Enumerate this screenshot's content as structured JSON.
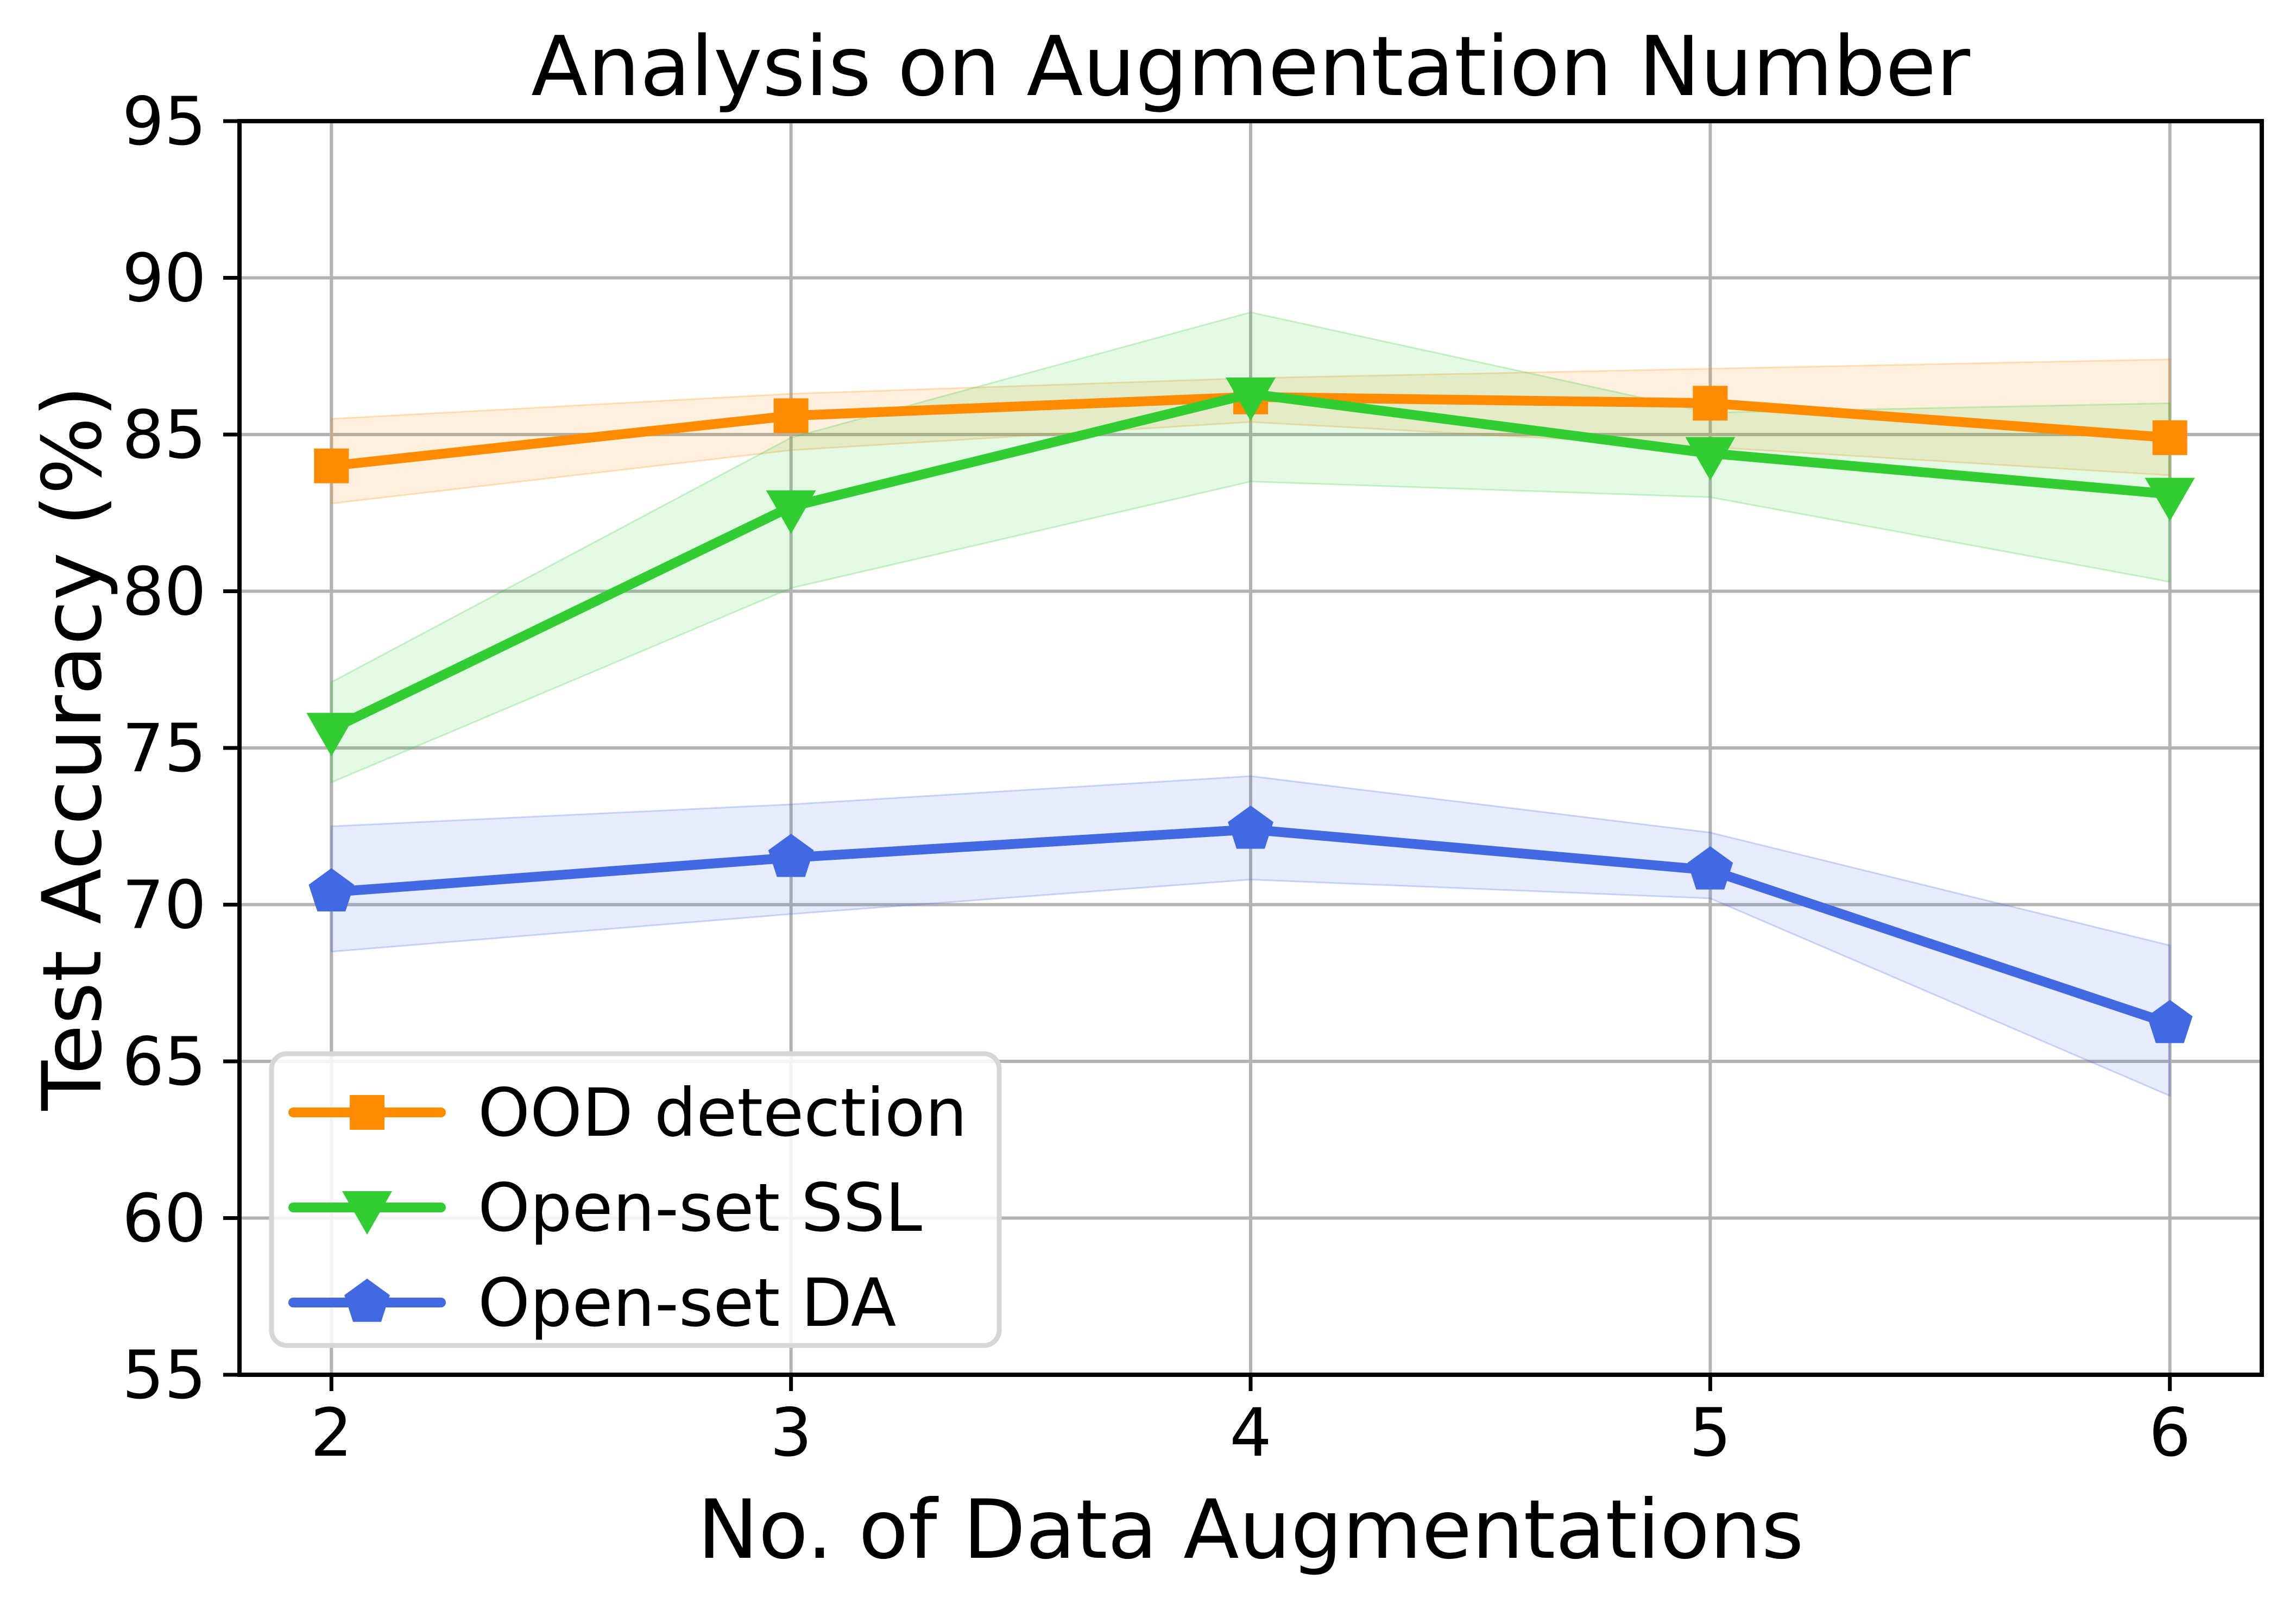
{
  "chart_data": {
    "type": "line",
    "title": "Analysis on Augmentation Number",
    "xlabel": "No. of Data Augmentations",
    "ylabel": "Test Accuracy (%)",
    "x": [
      2,
      3,
      4,
      5,
      6
    ],
    "xticks": [
      2,
      3,
      4,
      5,
      6
    ],
    "yticks": [
      55,
      60,
      65,
      70,
      75,
      80,
      85,
      90,
      95
    ],
    "xlim": [
      1.8,
      6.2
    ],
    "ylim": [
      55,
      95
    ],
    "grid": true,
    "grid_color": "#b3b3b3",
    "spine_color": "#000000",
    "background_color": "#ffffff",
    "band_alpha": 0.13,
    "legend_position": "lower-left",
    "series": [
      {
        "name": "OOD detection",
        "color": "#FF8C00",
        "marker": "square",
        "values": [
          84.0,
          85.6,
          86.2,
          86.0,
          84.9
        ],
        "band_low": [
          82.8,
          84.5,
          85.4,
          84.6,
          83.7
        ],
        "band_high": [
          85.5,
          86.3,
          86.8,
          87.1,
          87.4
        ]
      },
      {
        "name": "Open-set SSL",
        "color": "#32CD32",
        "marker": "triangle-down",
        "values": [
          75.6,
          82.7,
          86.3,
          84.4,
          83.1
        ],
        "band_low": [
          73.9,
          80.1,
          83.5,
          83.0,
          80.3
        ],
        "band_high": [
          77.1,
          84.9,
          88.9,
          85.7,
          86.0
        ]
      },
      {
        "name": "Open-set DA",
        "color": "#4169E1",
        "marker": "pentagon",
        "values": [
          70.4,
          71.5,
          72.4,
          71.1,
          66.2
        ],
        "band_low": [
          68.5,
          69.7,
          70.8,
          70.2,
          63.9
        ],
        "band_high": [
          72.5,
          73.2,
          74.1,
          72.3,
          68.7
        ]
      }
    ]
  }
}
